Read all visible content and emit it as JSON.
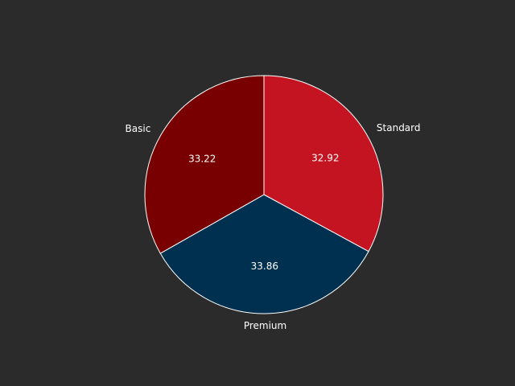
{
  "chart_data": {
    "type": "pie",
    "categories": [
      "Standard",
      "Premium",
      "Basic"
    ],
    "values": [
      32.92,
      33.86,
      33.22
    ],
    "value_labels": [
      "32.92",
      "33.86",
      "33.22"
    ],
    "colors": [
      "#c41422",
      "#00304f",
      "#780000"
    ],
    "start_angle": "12 o'clock",
    "direction": "clockwise",
    "edge_color": "#ffffff",
    "background": "#2b2b2b",
    "title": "",
    "legend": "none"
  }
}
